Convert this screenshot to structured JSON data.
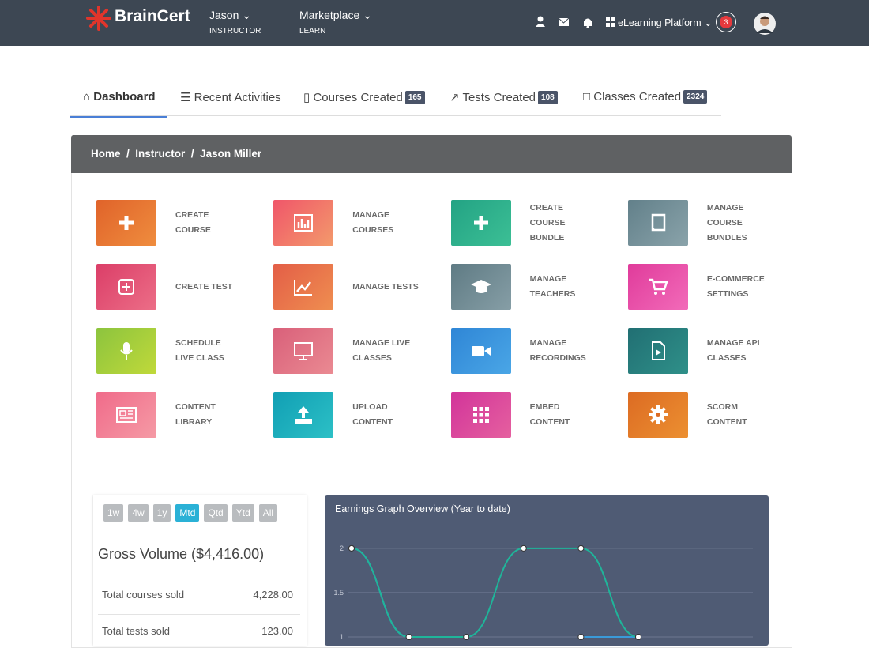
{
  "header": {
    "brand": "BrainCert",
    "user": {
      "name": "Jason",
      "role": "INSTRUCTOR"
    },
    "marketplace": {
      "name": "Marketplace",
      "sub": "LEARN"
    },
    "platform": "eLearning Platform",
    "notifications": "3"
  },
  "tabs": [
    {
      "label": "Dashboard"
    },
    {
      "label": "Recent Activities"
    },
    {
      "label": "Courses Created",
      "badge": "165"
    },
    {
      "label": "Tests Created",
      "badge": "108"
    },
    {
      "label": "Classes Created",
      "badge": "2324"
    }
  ],
  "breadcrumb": [
    "Home",
    "Instructor",
    "Jason Miller"
  ],
  "tiles": [
    {
      "lines": [
        "CREATE",
        "COURSE"
      ]
    },
    {
      "lines": [
        "MANAGE",
        "COURSES"
      ]
    },
    {
      "lines": [
        "CREATE",
        "COURSE",
        "BUNDLE"
      ]
    },
    {
      "lines": [
        "MANAGE",
        "COURSE",
        "BUNDLES"
      ]
    },
    {
      "lines": [
        "CREATE TEST"
      ]
    },
    {
      "lines": [
        "MANAGE TESTS"
      ]
    },
    {
      "lines": [
        "MANAGE",
        "TEACHERS"
      ]
    },
    {
      "lines": [
        "E-COMMERCE",
        "SETTINGS"
      ]
    },
    {
      "lines": [
        "SCHEDULE",
        "LIVE CLASS"
      ]
    },
    {
      "lines": [
        "MANAGE LIVE",
        "CLASSES"
      ]
    },
    {
      "lines": [
        "MANAGE",
        "RECORDINGS"
      ]
    },
    {
      "lines": [
        "MANAGE API",
        "CLASSES"
      ]
    },
    {
      "lines": [
        "CONTENT",
        "LIBRARY"
      ]
    },
    {
      "lines": [
        "UPLOAD",
        "CONTENT"
      ]
    },
    {
      "lines": [
        "EMBED",
        "CONTENT"
      ]
    },
    {
      "lines": [
        "SCORM",
        "CONTENT"
      ]
    }
  ],
  "periods": [
    "1w",
    "4w",
    "1y",
    "Mtd",
    "Qtd",
    "Ytd",
    "All"
  ],
  "active_period": "Mtd",
  "gross_volume": "Gross Volume ($4,416.00)",
  "stats": [
    [
      "Total courses sold",
      "4,228.00"
    ],
    [
      "Total tests sold",
      "123.00"
    ]
  ],
  "earnings_chart": {
    "type": "line",
    "title": "Earnings Graph Overview (Year to date)",
    "ylim": [
      1,
      2.25
    ],
    "yticks": [
      1,
      1.5,
      2
    ],
    "grid": true,
    "series": [
      {
        "color": "#3a9ad9",
        "values": [
          2,
          1,
          null,
          null,
          1,
          1
        ]
      },
      {
        "color": "#1fb59a",
        "values": [
          2,
          1,
          1,
          2,
          2,
          1
        ]
      }
    ]
  }
}
